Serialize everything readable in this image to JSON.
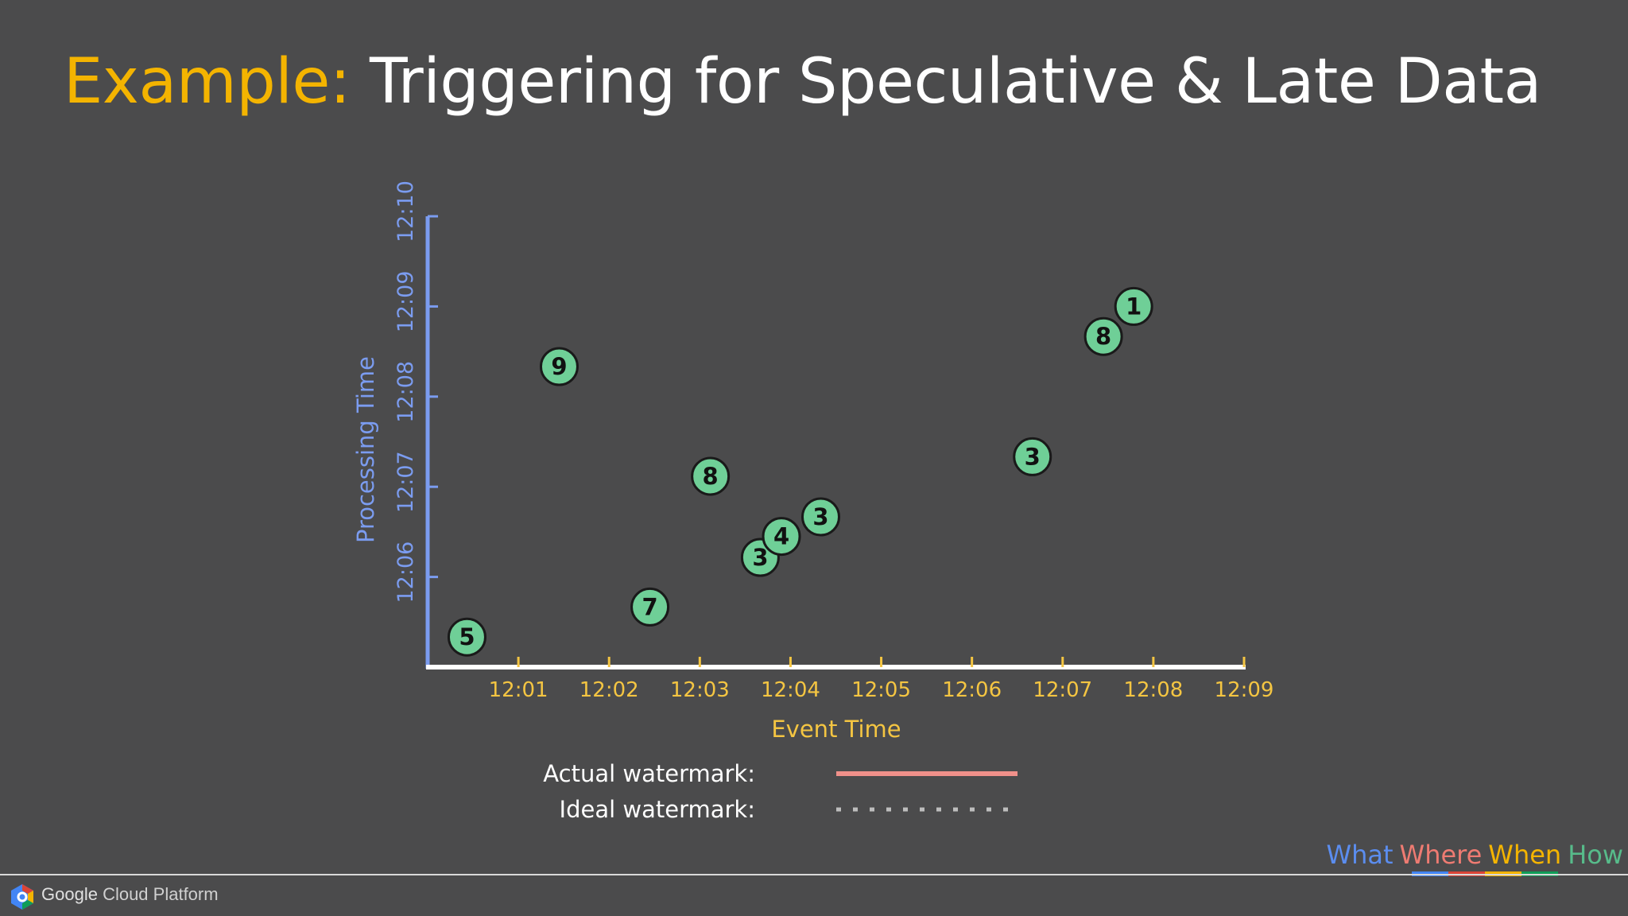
{
  "slide": {
    "title_keyword": "Example:",
    "title_rest": "Triggering for Speculative & Late Data"
  },
  "chart_data": {
    "type": "scatter",
    "xlabel": "Event Time",
    "ylabel": "Processing Time",
    "x_ticks": [
      "12:01",
      "12:02",
      "12:03",
      "12:04",
      "12:05",
      "12:06",
      "12:07",
      "12:08",
      "12:09"
    ],
    "y_ticks": [
      "12:06",
      "12:07",
      "12:08",
      "12:09",
      "12:10"
    ],
    "xlim": [
      "12:00",
      "12:09"
    ],
    "ylim": [
      "12:05",
      "12:10"
    ],
    "points": [
      {
        "event_time": "12:00:26",
        "processing_time": "12:05:20",
        "value": 5
      },
      {
        "event_time": "12:01:27",
        "processing_time": "12:08:20",
        "value": 9
      },
      {
        "event_time": "12:02:27",
        "processing_time": "12:05:40",
        "value": 7
      },
      {
        "event_time": "12:03:07",
        "processing_time": "12:07:07",
        "value": 8
      },
      {
        "event_time": "12:03:40",
        "processing_time": "12:06:13",
        "value": 3
      },
      {
        "event_time": "12:03:54",
        "processing_time": "12:06:27",
        "value": 4
      },
      {
        "event_time": "12:04:20",
        "processing_time": "12:06:40",
        "value": 3
      },
      {
        "event_time": "12:06:40",
        "processing_time": "12:07:20",
        "value": 3
      },
      {
        "event_time": "12:07:27",
        "processing_time": "12:08:40",
        "value": 8
      },
      {
        "event_time": "12:07:47",
        "processing_time": "12:09:00",
        "value": 1
      }
    ],
    "legend": [
      {
        "label": "Actual watermark:",
        "style": "solid",
        "color": "#f0908a"
      },
      {
        "label": "Ideal watermark:",
        "style": "dotted",
        "color": "#bdbdbd"
      }
    ],
    "colors": {
      "x_axis": "#ffffff",
      "y_axis": "#7b9cf0",
      "x_text": "#f4c542",
      "y_text": "#7b9cf0",
      "point_fill": "#6fcf97",
      "point_stroke": "#1a1a1a"
    }
  },
  "footer": {
    "brand_google": "Google",
    "brand_rest": " Cloud Platform",
    "logo_icon": "google-cloud-hexagon-icon",
    "nav": [
      {
        "label": "What",
        "color": "#5b8def"
      },
      {
        "label": "Where",
        "color": "#ee7b72"
      },
      {
        "label": "When",
        "color": "#f4b400"
      },
      {
        "label": "How",
        "color": "#57bb8a"
      }
    ],
    "underline_colors": [
      "#4285f4",
      "#db4437",
      "#f4b400",
      "#0f9d58"
    ]
  }
}
